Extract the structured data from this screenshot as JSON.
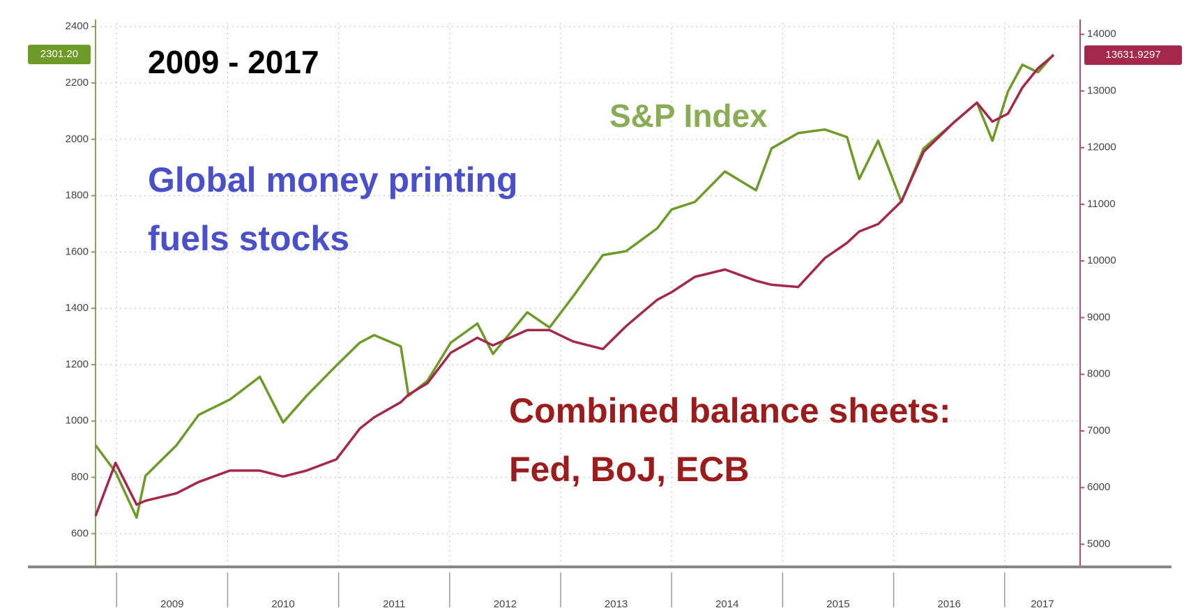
{
  "chart_data": {
    "type": "line",
    "title": "2009 - 2017",
    "annotations": [
      {
        "lines": [
          "Global money printing",
          "fuels stocks"
        ],
        "color": "#4a50c8"
      },
      {
        "lines": [
          "Combined balance sheets:",
          "Fed, BoJ, ECB"
        ],
        "color": "#9b1c1c"
      }
    ],
    "x": [
      2008.81,
      2008.99,
      2009.18,
      2009.26,
      2009.54,
      2009.74,
      2010.02,
      2010.29,
      2010.5,
      2010.71,
      2010.98,
      2011.19,
      2011.32,
      2011.56,
      2011.63,
      2011.8,
      2012.01,
      2012.25,
      2012.39,
      2012.7,
      2012.9,
      2013.11,
      2013.38,
      2013.59,
      2013.87,
      2014.0,
      2014.21,
      2014.48,
      2014.76,
      2014.9,
      2015.14,
      2015.38,
      2015.58,
      2015.69,
      2015.86,
      2016.07,
      2016.27,
      2016.55,
      2016.75,
      2016.89,
      2017.03,
      2017.16,
      2017.3,
      2017.44
    ],
    "series": [
      {
        "name": "S&P Index",
        "color": "#6e9a2a",
        "axis": "y",
        "values": [
          914,
          819,
          657,
          805,
          914,
          1022,
          1076,
          1157,
          995,
          1089,
          1197,
          1278,
          1305,
          1265,
          1089,
          1143,
          1278,
          1346,
          1238,
          1386,
          1332,
          1441,
          1589,
          1603,
          1684,
          1751,
          1778,
          1886,
          1819,
          1968,
          2022,
          2035,
          2008,
          1859,
          1995,
          1778,
          1968,
          2062,
          2130,
          1995,
          2170,
          2265,
          2238,
          2301.2
        ],
        "value_labels": [
          null,
          null,
          null,
          null,
          null,
          null,
          null,
          null,
          null,
          null,
          null,
          null,
          null,
          null,
          null,
          null,
          null,
          null,
          null,
          null,
          null,
          null,
          null,
          null,
          null,
          null,
          null,
          null,
          null,
          null,
          null,
          null,
          null,
          null,
          null,
          null,
          null,
          null,
          null,
          null,
          null,
          null,
          null,
          "2301.20"
        ]
      },
      {
        "color": "#a3284c",
        "axis": "y2",
        "values": [
          5500,
          6437,
          5700,
          5767,
          5900,
          6100,
          6300,
          6300,
          6195,
          6300,
          6500,
          7040,
          7240,
          7507,
          7641,
          7842,
          8380,
          8645,
          8510,
          8780,
          8780,
          8580,
          8445,
          8850,
          9315,
          9450,
          9720,
          9850,
          9650,
          9580,
          9540,
          10050,
          10320,
          10520,
          10650,
          11050,
          11925,
          12460,
          12795,
          12460,
          12600,
          13060,
          13400,
          13631.9297
        ]
      }
    ],
    "xlim": [
      2008.81,
      2017.68
    ],
    "xticks": [
      2009,
      2010,
      2011,
      2012,
      2013,
      2014,
      2015,
      2016,
      2017
    ],
    "ylim": [
      487,
      2413
    ],
    "yticks": [
      600,
      800,
      1000,
      1200,
      1400,
      1600,
      1800,
      2000,
      2200,
      2400
    ],
    "y2lim": [
      4625,
      14200
    ],
    "y2ticks": [
      5000,
      6000,
      7000,
      8000,
      9000,
      10000,
      11000,
      12000,
      13000,
      14000
    ],
    "grid": true
  }
}
